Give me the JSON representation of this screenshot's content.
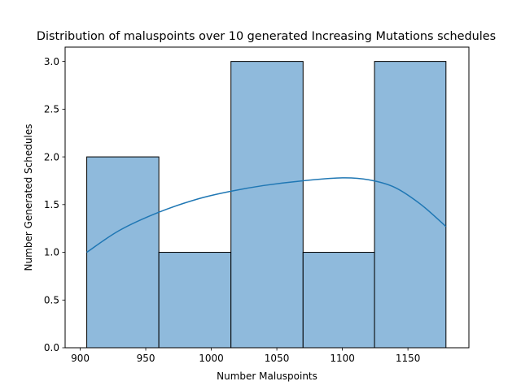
{
  "chart_data": {
    "type": "bar",
    "title": "Distribution of maluspoints over 10 generated Increasing Mutations schedules",
    "xlabel": "Number Maluspoints",
    "ylabel": "Number Generated Schedules",
    "xlim": [
      888.5,
      1196.5
    ],
    "ylim": [
      0,
      3.15
    ],
    "xticks": [
      900,
      950,
      1000,
      1050,
      1100,
      1150
    ],
    "yticks": [
      0.0,
      0.5,
      1.0,
      1.5,
      2.0,
      2.5,
      3.0
    ],
    "bins": [
      {
        "x0": 905,
        "x1": 960,
        "count": 2
      },
      {
        "x0": 960,
        "x1": 1015,
        "count": 1
      },
      {
        "x0": 1015,
        "x1": 1070,
        "count": 3
      },
      {
        "x0": 1070,
        "x1": 1124.5,
        "count": 1
      },
      {
        "x0": 1124.5,
        "x1": 1179,
        "count": 3
      }
    ],
    "kde": {
      "x": [
        905,
        930,
        960,
        990,
        1015,
        1040,
        1070,
        1100,
        1120,
        1140,
        1160,
        1179
      ],
      "y": [
        1.0,
        1.23,
        1.42,
        1.56,
        1.64,
        1.7,
        1.75,
        1.78,
        1.76,
        1.68,
        1.5,
        1.27
      ]
    },
    "bar_color": "#8fbadc",
    "line_color": "#1f77b4",
    "grid": false,
    "legend": "none"
  }
}
